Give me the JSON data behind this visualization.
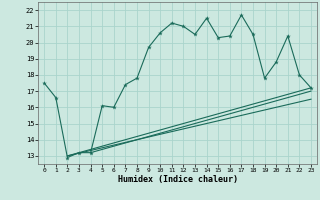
{
  "xlabel": "Humidex (Indice chaleur)",
  "xlim": [
    -0.5,
    23.5
  ],
  "ylim": [
    12.5,
    22.5
  ],
  "yticks": [
    13,
    14,
    15,
    16,
    17,
    18,
    19,
    20,
    21,
    22
  ],
  "xticks": [
    0,
    1,
    2,
    3,
    4,
    5,
    6,
    7,
    8,
    9,
    10,
    11,
    12,
    13,
    14,
    15,
    16,
    17,
    18,
    19,
    20,
    21,
    22,
    23
  ],
  "bg_color": "#cce8e0",
  "grid_color": "#aad4cc",
  "line_color": "#1a6b5a",
  "line1_x": [
    0,
    1,
    2,
    3,
    4,
    5,
    6,
    7,
    8,
    9,
    10,
    11,
    12,
    13,
    14,
    15,
    16,
    17,
    18,
    19,
    20,
    21,
    22,
    23
  ],
  "line1_y": [
    17.5,
    16.6,
    12.9,
    13.2,
    13.2,
    16.1,
    16.0,
    17.4,
    17.8,
    19.7,
    20.6,
    21.2,
    21.0,
    20.5,
    21.5,
    20.3,
    20.4,
    21.7,
    20.5,
    17.8,
    18.8,
    20.4,
    18.0,
    17.2
  ],
  "line2_x": [
    2,
    23
  ],
  "line2_y": [
    13.0,
    17.2
  ],
  "line3_x": [
    2,
    23
  ],
  "line3_y": [
    13.0,
    16.5
  ],
  "line4_x": [
    4,
    23
  ],
  "line4_y": [
    13.2,
    17.0
  ]
}
